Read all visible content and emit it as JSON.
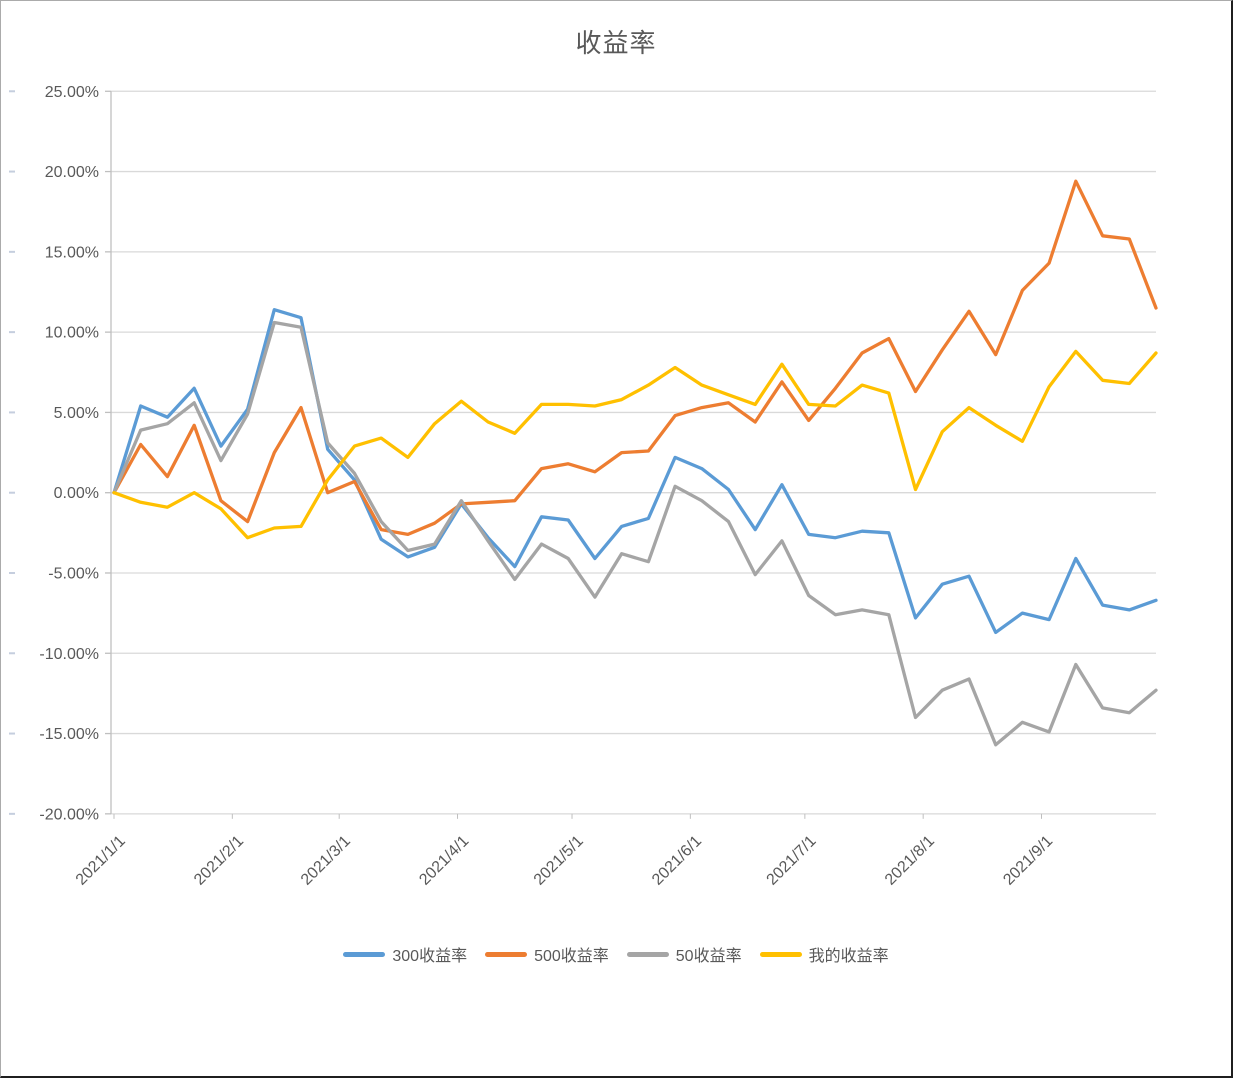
{
  "title": "收益率",
  "colors": {
    "series_300": "#5B9BD5",
    "series_500": "#ED7D31",
    "series_50": "#A5A5A5",
    "series_mine": "#FFC000",
    "gridline": "#D9D9D9",
    "axis_text": "#595959",
    "title_text": "#595959"
  },
  "chart_data": {
    "type": "line",
    "title": "收益率",
    "xlabel": "",
    "ylabel": "",
    "ylim": [
      -20,
      25
    ],
    "ytick_step": 5,
    "ytick_labels": [
      "25.00%",
      "20.00%",
      "15.00%",
      "10.00%",
      "5.00%",
      "0.00%",
      "-5.00%",
      "-10.00%",
      "-15.00%",
      "-20.00%"
    ],
    "xtick_labels": [
      "2021/1/1",
      "2021/2/1",
      "2021/3/1",
      "2021/4/1",
      "2021/5/1",
      "2021/6/1",
      "2021/7/1",
      "2021/8/1",
      "2021/9/1"
    ],
    "grid": "horizontal",
    "legend_position": "bottom",
    "unit": "percent",
    "x_dates": [
      "2021/1/1",
      "2021/1/8",
      "2021/1/15",
      "2021/1/22",
      "2021/1/29",
      "2021/2/5",
      "2021/2/12",
      "2021/2/19",
      "2021/2/26",
      "2021/3/5",
      "2021/3/12",
      "2021/3/19",
      "2021/3/26",
      "2021/4/2",
      "2021/4/9",
      "2021/4/16",
      "2021/4/23",
      "2021/4/30",
      "2021/5/7",
      "2021/5/14",
      "2021/5/21",
      "2021/5/28",
      "2021/6/4",
      "2021/6/11",
      "2021/6/18",
      "2021/6/25",
      "2021/7/2",
      "2021/7/9",
      "2021/7/16",
      "2021/7/23",
      "2021/7/30",
      "2021/8/6",
      "2021/8/13",
      "2021/8/20",
      "2021/8/27",
      "2021/9/3",
      "2021/9/10",
      "2021/9/17",
      "2021/9/24",
      "2021/10/1"
    ],
    "series": [
      {
        "name": "300收益率",
        "color": "#5B9BD5",
        "values": [
          0.0,
          5.4,
          4.7,
          6.5,
          2.9,
          5.2,
          11.4,
          10.9,
          2.7,
          0.8,
          -2.9,
          -4.0,
          -3.4,
          -0.7,
          -2.8,
          -4.6,
          -1.5,
          -1.7,
          -4.1,
          -2.1,
          -1.6,
          2.2,
          1.5,
          0.2,
          -2.3,
          0.5,
          -2.6,
          -2.8,
          -2.4,
          -2.5,
          -7.8,
          -5.7,
          -5.2,
          -8.7,
          -7.5,
          -7.9,
          -4.1,
          -7.0,
          -7.3,
          -6.7
        ]
      },
      {
        "name": "500收益率",
        "color": "#ED7D31",
        "values": [
          0.0,
          3.0,
          1.0,
          4.2,
          -0.5,
          -1.8,
          2.5,
          5.3,
          0.0,
          0.7,
          -2.3,
          -2.6,
          -1.9,
          -0.7,
          -0.6,
          -0.5,
          1.5,
          1.8,
          1.3,
          2.5,
          2.6,
          4.8,
          5.3,
          5.6,
          4.4,
          6.9,
          4.5,
          6.5,
          8.7,
          9.6,
          6.3,
          8.9,
          11.3,
          8.6,
          12.6,
          14.3,
          19.4,
          16.0,
          15.8,
          11.5
        ]
      },
      {
        "name": "50收益率",
        "color": "#A5A5A5",
        "values": [
          0.0,
          3.9,
          4.3,
          5.6,
          2.0,
          4.9,
          10.6,
          10.3,
          3.1,
          1.2,
          -1.8,
          -3.6,
          -3.2,
          -0.5,
          -3.0,
          -5.4,
          -3.2,
          -4.1,
          -6.5,
          -3.8,
          -4.3,
          0.4,
          -0.5,
          -1.8,
          -5.1,
          -3.0,
          -6.4,
          -7.6,
          -7.3,
          -7.6,
          -14.0,
          -12.3,
          -11.6,
          -15.7,
          -14.3,
          -14.9,
          -10.7,
          -13.4,
          -13.7,
          -12.3
        ]
      },
      {
        "name": "我的收益率",
        "color": "#FFC000",
        "values": [
          0.0,
          -0.6,
          -0.9,
          0.0,
          -1.0,
          -2.8,
          -2.2,
          -2.1,
          0.8,
          2.9,
          3.4,
          2.2,
          4.3,
          5.7,
          4.4,
          3.7,
          5.5,
          5.5,
          5.4,
          5.8,
          6.7,
          7.8,
          6.7,
          6.1,
          5.5,
          8.0,
          5.5,
          5.4,
          6.7,
          6.2,
          0.2,
          3.8,
          5.3,
          4.2,
          3.2,
          6.6,
          8.8,
          7.0,
          6.8,
          8.7
        ]
      }
    ]
  }
}
